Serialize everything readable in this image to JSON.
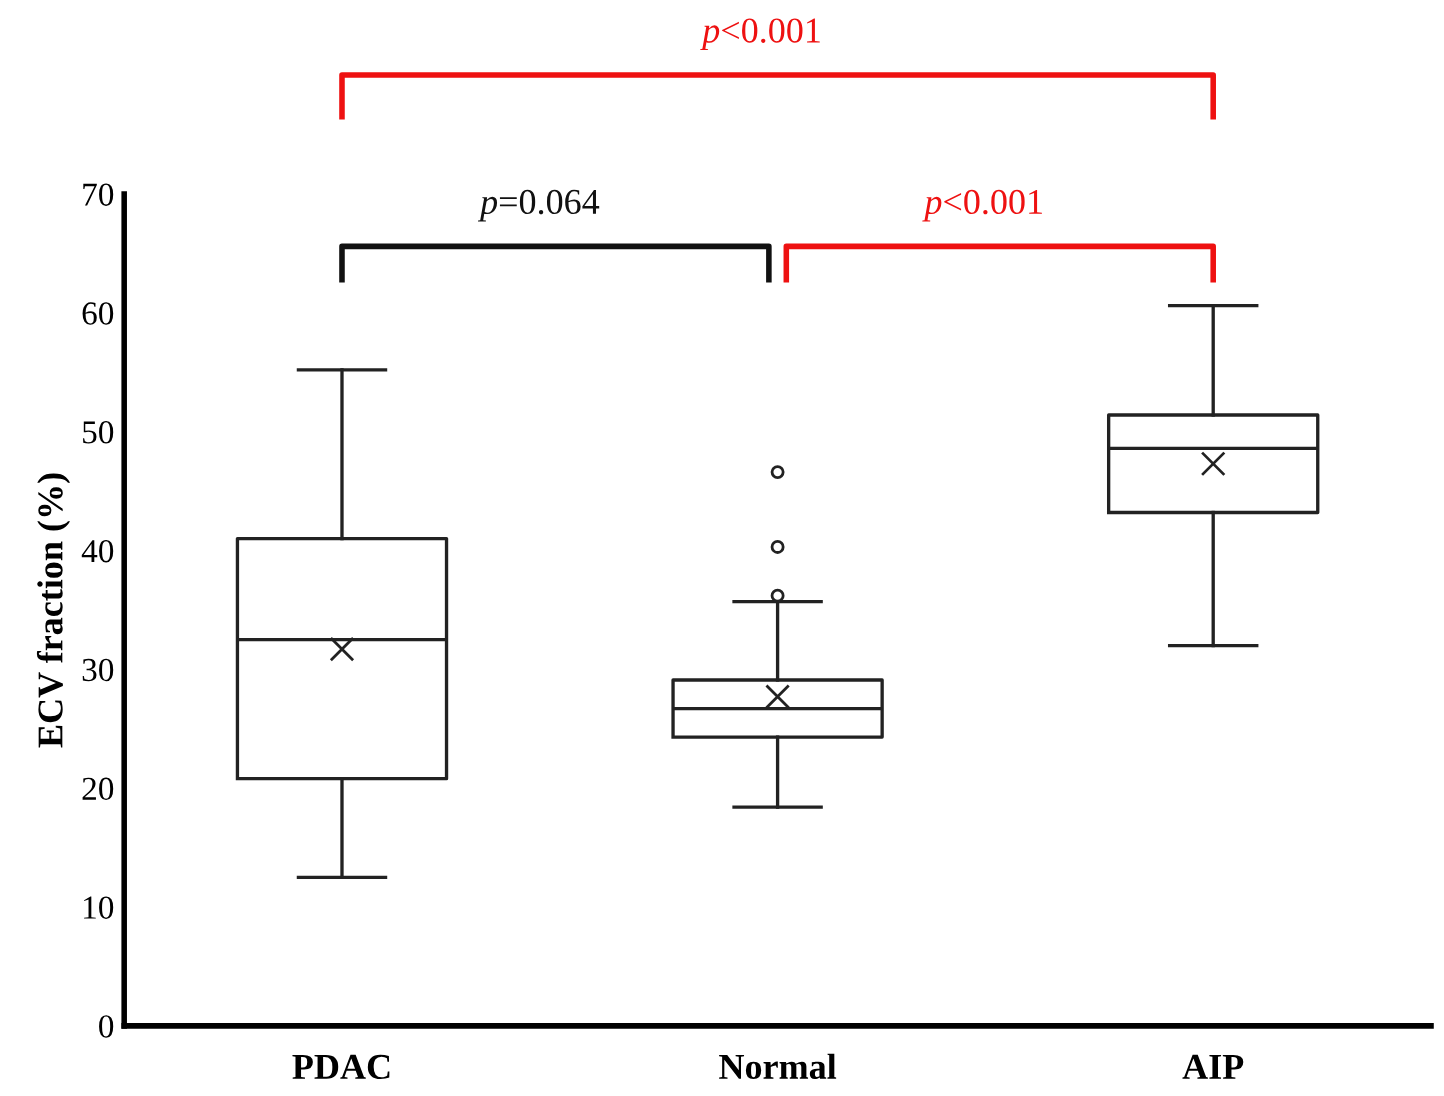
{
  "chart_data": {
    "type": "box",
    "ylabel": "ECV fraction (%)",
    "categories": [
      "PDAC",
      "Normal",
      "AIP"
    ],
    "boxes": [
      {
        "low": 12.5,
        "q1": 20.8,
        "median": 32.5,
        "q3": 41.0,
        "high": 55.2,
        "mean": 31.7
      },
      {
        "low": 18.4,
        "q1": 24.3,
        "median": 26.7,
        "q3": 29.1,
        "high": 35.7,
        "mean": 27.7,
        "outliers": [
          36.2,
          40.3,
          46.6
        ]
      },
      {
        "low": 32.0,
        "q1": 43.2,
        "median": 48.6,
        "q3": 51.4,
        "high": 60.6,
        "mean": 47.3
      }
    ],
    "ylim": [
      0,
      70
    ],
    "yticks": [
      0,
      10,
      20,
      30,
      40,
      50,
      60,
      70
    ],
    "grid": false,
    "annotations": [
      "p<0.001",
      "p=0.064",
      "p<0.001"
    ]
  }
}
